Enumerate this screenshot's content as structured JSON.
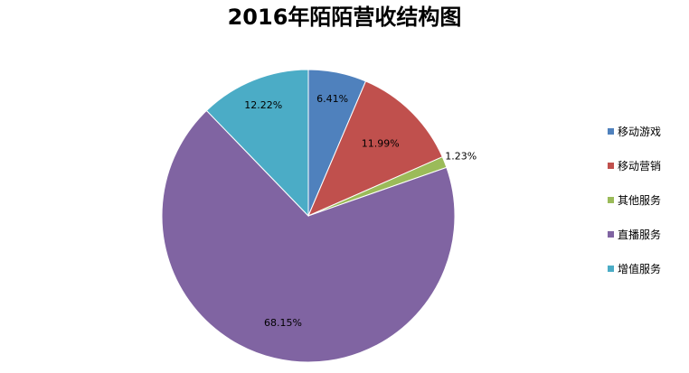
{
  "chart_data": {
    "type": "pie",
    "title": "2016年陌陌营收结构图",
    "categories": [
      "移动游戏",
      "移动营销",
      "其他服务",
      "直播服务",
      "增值服务"
    ],
    "values": [
      6.41,
      11.99,
      1.23,
      68.15,
      12.22
    ],
    "labels": [
      "6.41%",
      "11.99%",
      "1.23%",
      "68.15%",
      "12.22%"
    ],
    "colors": [
      "#4f81bd",
      "#c0504d",
      "#9bbb59",
      "#8064a2",
      "#4bacc6"
    ],
    "start_angle_deg": 0,
    "direction": "clockwise",
    "legend_position": "right"
  }
}
